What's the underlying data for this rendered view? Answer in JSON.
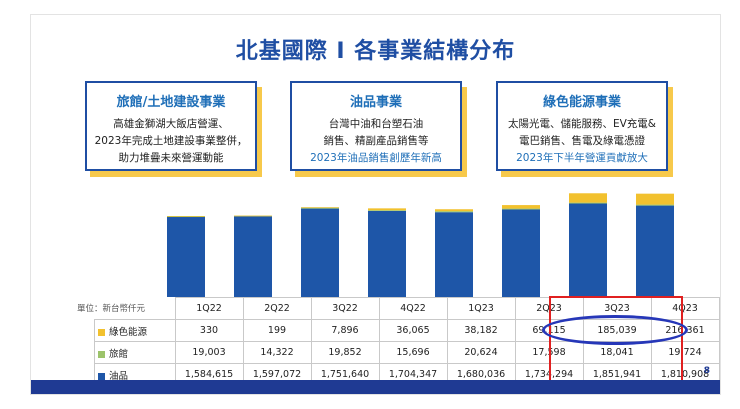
{
  "title": "北基國際 I 各事業結構分布",
  "page_number": "8",
  "cards": [
    {
      "title": "旅館/土地建設事業",
      "lines": [
        "高雄金獅湖大飯店營運、",
        "2023年完成土地建設事業整併，",
        "助力堆疊未來營運動能"
      ],
      "highlight": ""
    },
    {
      "title": "油品事業",
      "lines": [
        "台灣中油和台塑石油",
        "銷售、精副產品銷售等"
      ],
      "highlight": "2023年油品銷售創歷年新高"
    },
    {
      "title": "綠色能源事業",
      "lines": [
        "太陽光電、儲能服務、EV充電&",
        "電巴銷售、售電及綠電憑證"
      ],
      "highlight": "2023年下半年營運貢獻放大"
    }
  ],
  "table": {
    "unit_label": "單位：新台幣仟元",
    "columns": [
      "1Q22",
      "2Q22",
      "3Q22",
      "4Q22",
      "1Q23",
      "2Q23",
      "3Q23",
      "4Q23"
    ],
    "rows": [
      {
        "label": "綠色能源",
        "values": [
          "330",
          "199",
          "7,896",
          "36,065",
          "38,182",
          "69,115",
          "185,039",
          "216,361"
        ]
      },
      {
        "label": "旅館",
        "values": [
          "19,003",
          "14,322",
          "19,852",
          "15,696",
          "20,624",
          "17,598",
          "18,041",
          "19,724"
        ]
      },
      {
        "label": "油品",
        "values": [
          "1,584,615",
          "1,597,072",
          "1,751,640",
          "1,704,347",
          "1,680,036",
          "1,734,294",
          "1,851,941",
          "1,810,908"
        ]
      }
    ]
  },
  "colors": {
    "oil": "#1e56a8",
    "hotel": "#9cc36a",
    "green": "#f2c12e",
    "accent": "#1f4ea3",
    "red_box": "#e02020",
    "oval": "#2637b8"
  },
  "chart_data": {
    "type": "bar",
    "stacked": true,
    "categories": [
      "1Q22",
      "2Q22",
      "3Q22",
      "4Q22",
      "1Q23",
      "2Q23",
      "3Q23",
      "4Q23"
    ],
    "series": [
      {
        "name": "油品",
        "values": [
          1584615,
          1597072,
          1751640,
          1704347,
          1680036,
          1734294,
          1851941,
          1810908
        ]
      },
      {
        "name": "旅館",
        "values": [
          19003,
          14322,
          19852,
          15696,
          20624,
          17598,
          18041,
          19724
        ]
      },
      {
        "name": "綠色能源",
        "values": [
          330,
          199,
          7896,
          36065,
          38182,
          69115,
          185039,
          216361
        ]
      }
    ],
    "unit": "新台幣仟元",
    "ylim": [
      0,
      2100000
    ]
  }
}
